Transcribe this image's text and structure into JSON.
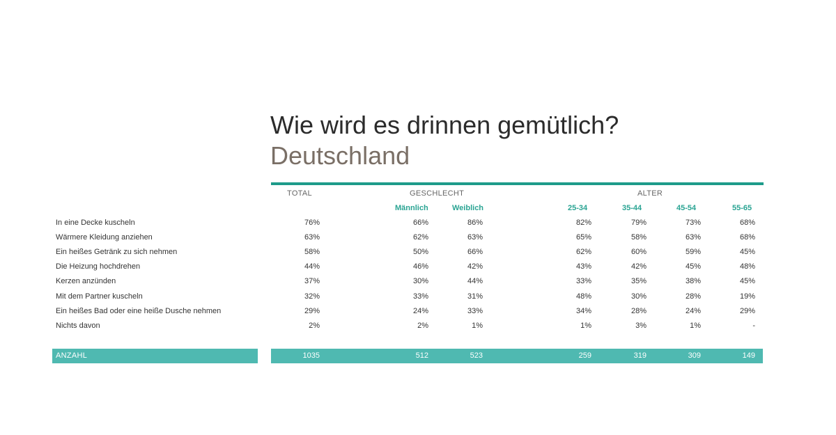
{
  "title": "Wie wird es drinnen gemütlich?",
  "subtitle": "Deutschland",
  "colors": {
    "accent_rule": "#1e9b8a",
    "accent_bar": "#4fb9b1",
    "subheader_text": "#2aa493"
  },
  "headers": {
    "total": "TOTAL",
    "gender": "GESCHLECHT",
    "age": "ALTER"
  },
  "subheaders": [
    "Männlich",
    "Weiblich",
    "25-34",
    "35-44",
    "45-54",
    "55-65"
  ],
  "rows": [
    {
      "label": "In eine Decke kuscheln",
      "values": [
        "76%",
        "66%",
        "86%",
        "82%",
        "79%",
        "73%",
        "68%"
      ]
    },
    {
      "label": "Wärmere Kleidung anziehen",
      "values": [
        "63%",
        "62%",
        "63%",
        "65%",
        "58%",
        "63%",
        "68%"
      ]
    },
    {
      "label": "Ein heißes Getränk zu sich nehmen",
      "values": [
        "58%",
        "50%",
        "66%",
        "62%",
        "60%",
        "59%",
        "45%"
      ]
    },
    {
      "label": "Die Heizung hochdrehen",
      "values": [
        "44%",
        "46%",
        "42%",
        "43%",
        "42%",
        "45%",
        "48%"
      ]
    },
    {
      "label": "Kerzen anzünden",
      "values": [
        "37%",
        "30%",
        "44%",
        "33%",
        "35%",
        "38%",
        "45%"
      ]
    },
    {
      "label": "Mit dem Partner kuscheln",
      "values": [
        "32%",
        "33%",
        "31%",
        "48%",
        "30%",
        "28%",
        "19%"
      ]
    },
    {
      "label": "Ein heißes Bad oder eine heiße Dusche nehmen",
      "values": [
        "29%",
        "24%",
        "33%",
        "34%",
        "28%",
        "24%",
        "29%"
      ]
    },
    {
      "label": "Nichts davon",
      "values": [
        "2%",
        "2%",
        "1%",
        "1%",
        "3%",
        "1%",
        "-"
      ]
    }
  ],
  "count": {
    "label": "ANZAHL",
    "values": [
      "1035",
      "512",
      "523",
      "259",
      "319",
      "309",
      "149"
    ]
  }
}
